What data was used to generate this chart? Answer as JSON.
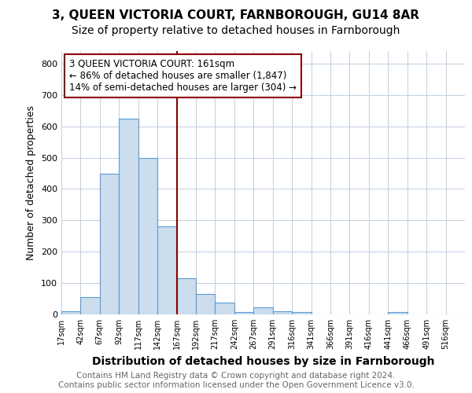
{
  "title": "3, QUEEN VICTORIA COURT, FARNBOROUGH, GU14 8AR",
  "subtitle": "Size of property relative to detached houses in Farnborough",
  "xlabel": "Distribution of detached houses by size in Farnborough",
  "ylabel": "Number of detached properties",
  "bin_labels": [
    "17sqm",
    "42sqm",
    "67sqm",
    "92sqm",
    "117sqm",
    "142sqm",
    "167sqm",
    "192sqm",
    "217sqm",
    "242sqm",
    "267sqm",
    "291sqm",
    "316sqm",
    "341sqm",
    "366sqm",
    "391sqm",
    "416sqm",
    "441sqm",
    "466sqm",
    "491sqm",
    "516sqm"
  ],
  "bar_heights": [
    10,
    55,
    450,
    625,
    500,
    280,
    115,
    65,
    37,
    8,
    22,
    10,
    8,
    0,
    0,
    0,
    0,
    7,
    0,
    0,
    0
  ],
  "bar_color": "#ccdded",
  "bar_edge_color": "#5b9bd5",
  "vline_color": "#8b0000",
  "annotation_box_color": "#8b0000",
  "annotation_text": "3 QUEEN VICTORIA COURT: 161sqm\n← 86% of detached houses are smaller (1,847)\n14% of semi-detached houses are larger (304) →",
  "annotation_fontsize": 8.5,
  "ylim": [
    0,
    840
  ],
  "yticks": [
    0,
    100,
    200,
    300,
    400,
    500,
    600,
    700,
    800
  ],
  "footer_text": "Contains HM Land Registry data © Crown copyright and database right 2024.\nContains public sector information licensed under the Open Government Licence v3.0.",
  "title_fontsize": 11,
  "subtitle_fontsize": 10,
  "xlabel_fontsize": 10,
  "ylabel_fontsize": 9,
  "footer_fontsize": 7.5,
  "background_color": "#ffffff",
  "grid_color": "#c0cfe0"
}
